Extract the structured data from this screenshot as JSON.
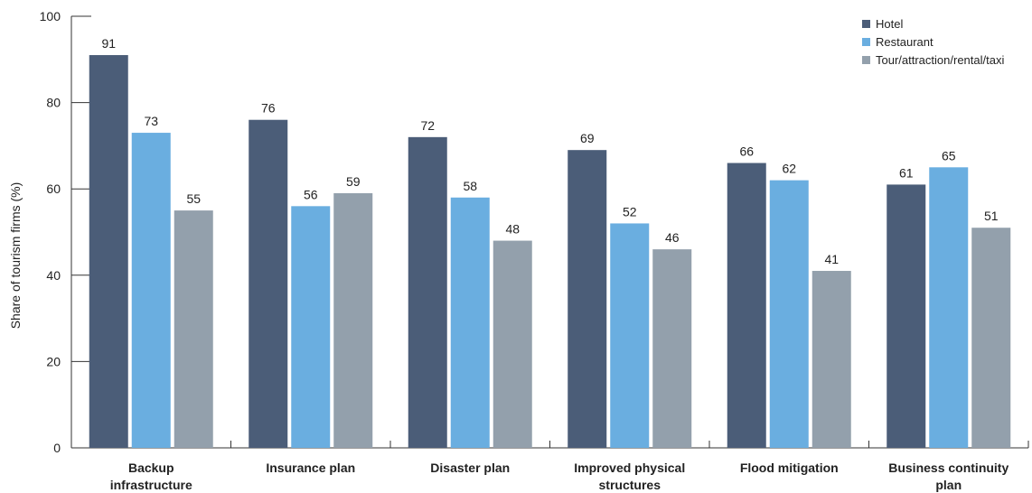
{
  "chart_data": {
    "type": "bar",
    "title": "",
    "xlabel": "",
    "ylabel": "Share of tourism firms (%)",
    "ylim": [
      0,
      100
    ],
    "yticks": [
      0,
      20,
      40,
      60,
      80,
      100
    ],
    "grid": false,
    "legend_position": "top-right",
    "categories": [
      [
        "Backup",
        "infrastructure"
      ],
      [
        "Insurance plan"
      ],
      [
        "Disaster plan"
      ],
      [
        "Improved physical",
        "structures"
      ],
      [
        "Flood mitigation"
      ],
      [
        "Business continuity",
        "plan"
      ]
    ],
    "series": [
      {
        "name": "Hotel",
        "color": "#4b5d78",
        "values": [
          91,
          76,
          72,
          69,
          66,
          61
        ]
      },
      {
        "name": "Restaurant",
        "color": "#6aaee0",
        "values": [
          73,
          56,
          58,
          52,
          62,
          65
        ]
      },
      {
        "name": "Tour/attraction/rental/taxi",
        "color": "#93a0ac",
        "values": [
          55,
          59,
          48,
          46,
          41,
          51
        ]
      }
    ]
  }
}
